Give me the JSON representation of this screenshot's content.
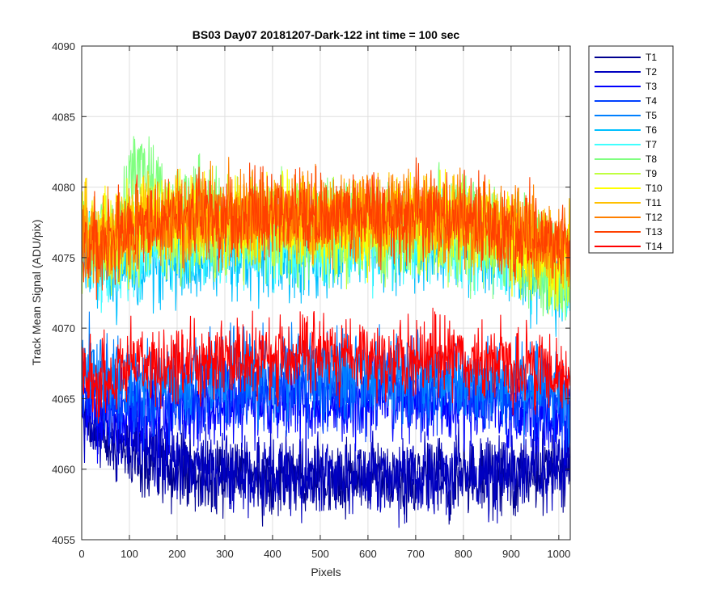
{
  "chart_data": {
    "type": "line",
    "title": "BS03 Day07 20181207-Dark-122 int time = 100 sec",
    "xlabel": "Pixels",
    "ylabel": "Track Mean Signal (ADU/pix)",
    "xlim": [
      0,
      1024
    ],
    "ylim": [
      4055,
      4090
    ],
    "xticks": [
      0,
      100,
      200,
      300,
      400,
      500,
      600,
      700,
      800,
      900,
      1000
    ],
    "yticks": [
      4055,
      4060,
      4065,
      4070,
      4075,
      4080,
      4085,
      4090
    ],
    "grid": true,
    "legend_position": "outside-top-right",
    "x_sample": [
      0,
      25,
      50,
      75,
      100,
      125,
      150,
      200,
      300,
      400,
      500,
      600,
      700,
      800,
      850,
      900,
      950,
      1000,
      1024
    ],
    "series": [
      {
        "name": "T1",
        "color": "#00008f",
        "amplitude": 1.3,
        "values": [
          4064.5,
          4063.0,
          4062.0,
          4061.5,
          4061.0,
          4060.8,
          4060.5,
          4060.0,
          4059.6,
          4059.5,
          4059.5,
          4059.5,
          4059.5,
          4059.5,
          4059.5,
          4059.5,
          4059.6,
          4060.0,
          4060.3
        ]
      },
      {
        "name": "T2",
        "color": "#0000c0",
        "amplitude": 1.4,
        "values": [
          4064.8,
          4063.5,
          4063.0,
          4062.5,
          4062.0,
          4061.5,
          4061.0,
          4060.5,
          4059.8,
          4059.6,
          4059.6,
          4059.6,
          4059.6,
          4059.6,
          4059.7,
          4059.8,
          4060.0,
          4060.5,
          4061.0
        ]
      },
      {
        "name": "T3",
        "color": "#0000ff",
        "amplitude": 1.4,
        "values": [
          4065.0,
          4064.5,
          4064.0,
          4064.0,
          4064.0,
          4064.0,
          4064.0,
          4064.2,
          4064.5,
          4064.8,
          4064.8,
          4064.8,
          4064.8,
          4064.7,
          4064.5,
          4064.3,
          4064.0,
          4063.8,
          4063.5
        ]
      },
      {
        "name": "T4",
        "color": "#0040ff",
        "amplitude": 1.4,
        "values": [
          4066.0,
          4065.5,
          4065.0,
          4065.0,
          4065.0,
          4065.0,
          4065.0,
          4065.2,
          4065.5,
          4065.8,
          4065.8,
          4065.8,
          4065.8,
          4065.6,
          4065.4,
          4065.2,
          4065.0,
          4064.8,
          4064.5
        ]
      },
      {
        "name": "T5",
        "color": "#0080ff",
        "amplitude": 1.5,
        "values": [
          4068.0,
          4067.0,
          4066.5,
          4066.3,
          4066.2,
          4066.2,
          4066.2,
          4066.4,
          4066.7,
          4067.0,
          4067.0,
          4067.0,
          4066.9,
          4066.7,
          4066.5,
          4066.3,
          4066.0,
          4065.5,
          4065.0
        ]
      },
      {
        "name": "T6",
        "color": "#00c0ff",
        "amplitude": 1.6,
        "values": [
          4075.5,
          4074.5,
          4074.0,
          4074.0,
          4074.3,
          4074.5,
          4074.8,
          4075.0,
          4075.3,
          4075.5,
          4075.5,
          4075.8,
          4076.0,
          4075.8,
          4075.5,
          4075.0,
          4074.0,
          4073.5,
          4073.0
        ]
      },
      {
        "name": "T7",
        "color": "#40ffff",
        "amplitude": 1.6,
        "values": [
          4076.0,
          4075.0,
          4074.5,
          4074.5,
          4075.0,
          4075.5,
          4075.5,
          4075.8,
          4076.0,
          4076.2,
          4076.2,
          4076.3,
          4076.5,
          4076.3,
          4076.0,
          4075.5,
          4074.5,
          4073.8,
          4073.0
        ]
      },
      {
        "name": "T8",
        "color": "#80ff80",
        "amplitude": 1.8,
        "values": [
          4077.0,
          4076.0,
          4076.0,
          4077.0,
          4079.5,
          4082.0,
          4080.0,
          4078.0,
          4077.5,
          4077.0,
          4076.8,
          4076.8,
          4077.0,
          4076.8,
          4076.5,
          4076.0,
          4075.0,
          4074.0,
          4073.0
        ]
      },
      {
        "name": "T9",
        "color": "#c0ff40",
        "amplitude": 1.6,
        "values": [
          4076.5,
          4076.0,
          4075.8,
          4076.0,
          4076.5,
          4077.0,
          4077.0,
          4077.0,
          4077.0,
          4077.0,
          4077.0,
          4077.0,
          4077.0,
          4076.8,
          4076.5,
          4076.0,
          4075.0,
          4074.5,
          4074.0
        ]
      },
      {
        "name": "T10",
        "color": "#ffff00",
        "amplitude": 1.5,
        "values": [
          4076.8,
          4076.5,
          4076.3,
          4076.5,
          4077.0,
          4077.3,
          4077.5,
          4077.5,
          4077.5,
          4077.5,
          4077.5,
          4077.5,
          4077.5,
          4077.3,
          4077.0,
          4076.5,
          4075.5,
          4075.0,
          4074.5
        ]
      },
      {
        "name": "T11",
        "color": "#ffc000",
        "amplitude": 1.5,
        "values": [
          4077.0,
          4076.5,
          4076.3,
          4076.6,
          4077.0,
          4077.4,
          4077.6,
          4077.8,
          4077.8,
          4077.8,
          4077.8,
          4077.8,
          4077.8,
          4077.6,
          4077.3,
          4076.8,
          4076.0,
          4075.5,
          4075.0
        ]
      },
      {
        "name": "T12",
        "color": "#ff8000",
        "amplitude": 1.5,
        "values": [
          4076.0,
          4076.0,
          4076.3,
          4076.6,
          4077.0,
          4077.3,
          4077.5,
          4077.8,
          4077.9,
          4078.0,
          4078.0,
          4078.0,
          4078.0,
          4077.8,
          4077.5,
          4077.0,
          4076.3,
          4075.8,
          4075.3
        ]
      },
      {
        "name": "T13",
        "color": "#ff4000",
        "amplitude": 1.5,
        "values": [
          4075.5,
          4075.8,
          4076.2,
          4076.6,
          4077.0,
          4077.3,
          4077.5,
          4077.8,
          4078.0,
          4078.0,
          4078.0,
          4078.0,
          4078.0,
          4077.8,
          4077.5,
          4077.0,
          4076.5,
          4076.0,
          4075.5
        ]
      },
      {
        "name": "T14",
        "color": "#ff0000",
        "amplitude": 1.4,
        "values": [
          4066.5,
          4066.5,
          4066.8,
          4067.0,
          4067.2,
          4067.3,
          4067.5,
          4067.6,
          4067.8,
          4068.0,
          4068.0,
          4068.0,
          4068.0,
          4067.8,
          4067.6,
          4067.3,
          4067.0,
          4066.5,
          4066.0
        ]
      }
    ]
  }
}
